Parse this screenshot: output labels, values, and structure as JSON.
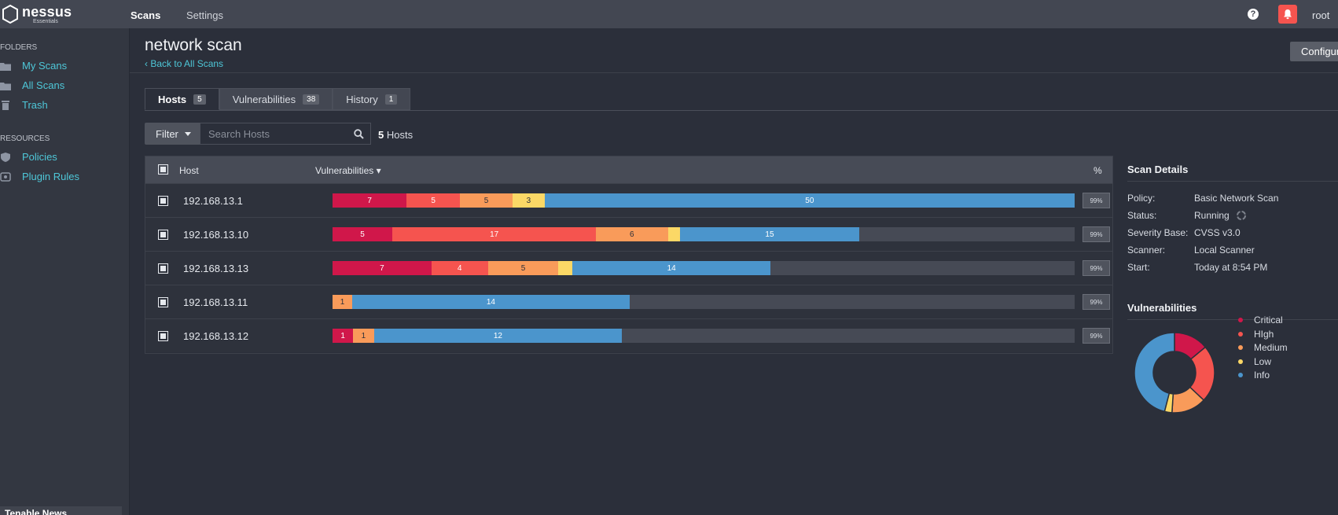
{
  "app": {
    "logo_text": "nessus",
    "logo_sub": "Essentials",
    "nav": {
      "scans": "Scans",
      "settings": "Settings"
    },
    "help_glyph": "?",
    "user": "root",
    "colors": {
      "topbar": "#434752",
      "accent": "#4ec7d8",
      "bell": "#f5544f"
    }
  },
  "sidebar": {
    "folders_label": "FOLDERS",
    "folders": [
      {
        "label": "My Scans",
        "icon": "folder-icon"
      },
      {
        "label": "All Scans",
        "icon": "folder-icon"
      },
      {
        "label": "Trash",
        "icon": "trash-icon"
      }
    ],
    "resources_label": "RESOURCES",
    "resources": [
      {
        "label": "Policies",
        "icon": "shield-icon"
      },
      {
        "label": "Plugin Rules",
        "icon": "plugin-icon"
      }
    ],
    "news_label": "Tenable News"
  },
  "page": {
    "title": "network scan",
    "back_link": "Back to All Scans",
    "configure_label": "Configure"
  },
  "tabs": [
    {
      "label": "Hosts",
      "count": "5"
    },
    {
      "label": "Vulnerabilities",
      "count": "38"
    },
    {
      "label": "History",
      "count": "1"
    }
  ],
  "filter": {
    "label": "Filter",
    "search_placeholder": "Search Hosts",
    "count_number": "5",
    "count_label": "Hosts"
  },
  "table": {
    "headers": {
      "host": "Host",
      "vulnerabilities": "Vulnerabilities ▾",
      "percent": "%"
    },
    "rows": [
      {
        "host": "192.168.13.1",
        "critical": 7,
        "high": 5,
        "medium": 5,
        "low": 3,
        "info": 50,
        "percent": "99%"
      },
      {
        "host": "192.168.13.10",
        "critical": 5,
        "high": 17,
        "medium": 6,
        "low": 0,
        "info": 15,
        "percent": "99%"
      },
      {
        "host": "192.168.13.13",
        "critical": 7,
        "high": 4,
        "medium": 5,
        "low": 0,
        "info": 14,
        "percent": "99%"
      },
      {
        "host": "192.168.13.11",
        "critical": 0,
        "high": 0,
        "medium": 1,
        "low": 0,
        "info": 14,
        "percent": "99%"
      },
      {
        "host": "192.168.13.12",
        "critical": 1,
        "high": 0,
        "medium": 1,
        "low": 0,
        "info": 12,
        "percent": "99%"
      }
    ],
    "bar_fill_fraction": [
      1.0,
      0.71,
      0.59,
      0.4,
      0.39
    ],
    "row_low_present": [
      true,
      true,
      true,
      false,
      false
    ]
  },
  "scan_details": {
    "title": "Scan Details",
    "items": [
      {
        "key": "Policy:",
        "value": "Basic Network Scan"
      },
      {
        "key": "Status:",
        "value": "Running"
      },
      {
        "key": "Severity Base:",
        "value": "CVSS v3.0"
      },
      {
        "key": "Scanner:",
        "value": "Local Scanner"
      },
      {
        "key": "Start:",
        "value": "Today at 8:54 PM"
      }
    ]
  },
  "vulnerabilities": {
    "title": "Vulnerabilities",
    "legend": [
      {
        "label": "Critical",
        "color": "#d0174a"
      },
      {
        "label": "HIgh",
        "color": "#f5544f"
      },
      {
        "label": "Medium",
        "color": "#f99b5a"
      },
      {
        "label": "Low",
        "color": "#fbd866"
      },
      {
        "label": "Info",
        "color": "#4b95cc"
      }
    ],
    "donut_fractions": [
      0.14,
      0.23,
      0.14,
      0.03,
      0.46
    ]
  }
}
